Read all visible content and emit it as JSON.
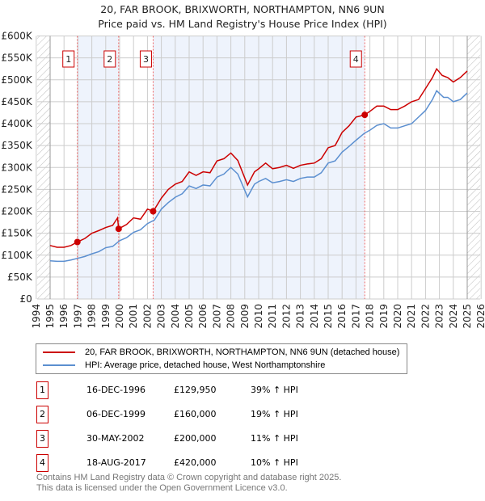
{
  "title_line1": "20, FAR BROOK, BRIXWORTH, NORTHAMPTON, NN6 9UN",
  "title_line2": "Price paid vs. HM Land Registry's House Price Index (HPI)",
  "colors": {
    "property": "#cc0000",
    "hpi": "#5b8fd0",
    "shade": "#eef3fc",
    "marker": "#cc0000"
  },
  "chart_data": {
    "type": "line",
    "xlim": [
      1994,
      2026
    ],
    "ylim": [
      0,
      600000
    ],
    "yticks": [
      0,
      50000,
      100000,
      150000,
      200000,
      250000,
      300000,
      350000,
      400000,
      450000,
      500000,
      550000,
      600000
    ],
    "ytick_labels": [
      "£0",
      "£50K",
      "£100K",
      "£150K",
      "£200K",
      "£250K",
      "£300K",
      "£350K",
      "£400K",
      "£450K",
      "£500K",
      "£550K",
      "£600K"
    ],
    "xticks": [
      "1994",
      "1995",
      "1996",
      "1997",
      "1998",
      "1999",
      "2000",
      "2001",
      "2002",
      "2003",
      "2004",
      "2005",
      "2006",
      "2007",
      "2008",
      "2009",
      "2010",
      "2011",
      "2012",
      "2013",
      "2014",
      "2015",
      "2016",
      "2017",
      "2018",
      "2019",
      "2020",
      "2021",
      "2022",
      "2023",
      "2024",
      "2025",
      "2026"
    ],
    "series": [
      {
        "name": "20, FAR BROOK, BRIXWORTH, NORTHAMPTON, NN6 9UN (detached house)",
        "x": [
          1995,
          1995.5,
          1996,
          1996.5,
          1996.96,
          1997.5,
          1998,
          1998.5,
          1999,
          1999.5,
          1999.85,
          1999.93,
          2000.5,
          2001,
          2001.5,
          2002,
          2002.42,
          2003,
          2003.5,
          2004,
          2004.5,
          2005,
          2005.5,
          2006,
          2006.5,
          2007,
          2007.5,
          2008,
          2008.5,
          2009.2,
          2009.7,
          2010,
          2010.5,
          2011,
          2011.5,
          2012,
          2012.5,
          2013,
          2013.5,
          2014,
          2014.5,
          2015,
          2015.5,
          2016,
          2016.5,
          2017,
          2017.63,
          2018,
          2018.5,
          2019,
          2019.5,
          2020,
          2020.5,
          2021,
          2021.5,
          2022,
          2022.5,
          2022.8,
          2023.2,
          2023.6,
          2024,
          2024.5,
          2025
        ],
        "values": [
          122000,
          118000,
          118000,
          122000,
          130000,
          138000,
          150000,
          156000,
          163000,
          168000,
          185000,
          160000,
          170000,
          185000,
          182000,
          205000,
          200000,
          230000,
          250000,
          262000,
          268000,
          290000,
          282000,
          290000,
          288000,
          315000,
          320000,
          333000,
          316000,
          260000,
          290000,
          297000,
          310000,
          297000,
          300000,
          305000,
          298000,
          305000,
          308000,
          310000,
          320000,
          345000,
          350000,
          380000,
          395000,
          415000,
          420000,
          428000,
          440000,
          440000,
          432000,
          432000,
          440000,
          450000,
          455000,
          480000,
          505000,
          525000,
          510000,
          505000,
          495000,
          505000,
          520000
        ]
      },
      {
        "name": "HPI: Average price, detached house, West Northamptonshire",
        "x": [
          1995,
          1995.5,
          1996,
          1996.5,
          1997,
          1997.5,
          1998,
          1998.5,
          1999,
          1999.5,
          2000,
          2000.5,
          2001,
          2001.5,
          2002,
          2002.5,
          2003,
          2003.5,
          2004,
          2004.5,
          2005,
          2005.5,
          2006,
          2006.5,
          2007,
          2007.5,
          2008,
          2008.5,
          2009.2,
          2009.7,
          2010,
          2010.5,
          2011,
          2011.5,
          2012,
          2012.5,
          2013,
          2013.5,
          2014,
          2014.5,
          2015,
          2015.5,
          2016,
          2016.5,
          2017,
          2017.6,
          2018,
          2018.5,
          2019,
          2019.5,
          2020,
          2020.5,
          2021,
          2021.5,
          2022,
          2022.5,
          2022.8,
          2023.3,
          2023.6,
          2024,
          2024.5,
          2025
        ],
        "values": [
          87000,
          86000,
          86000,
          89000,
          93000,
          97000,
          103000,
          108000,
          117000,
          120000,
          133000,
          140000,
          152000,
          158000,
          172000,
          180000,
          205000,
          220000,
          232000,
          240000,
          258000,
          252000,
          260000,
          258000,
          278000,
          285000,
          300000,
          285000,
          233000,
          262000,
          268000,
          275000,
          265000,
          268000,
          272000,
          268000,
          275000,
          278000,
          278000,
          288000,
          310000,
          315000,
          335000,
          348000,
          362000,
          378000,
          385000,
          396000,
          400000,
          390000,
          390000,
          395000,
          400000,
          415000,
          430000,
          455000,
          475000,
          460000,
          460000,
          450000,
          455000,
          470000
        ]
      }
    ],
    "sales": [
      {
        "label": "1",
        "x": 1996.96,
        "value": 129950,
        "date": "16-DEC-1996",
        "price": "£129,950",
        "hpi": "39% ↑ HPI"
      },
      {
        "label": "2",
        "x": 1999.93,
        "value": 160000,
        "date": "06-DEC-1999",
        "price": "£160,000",
        "hpi": "19% ↑ HPI"
      },
      {
        "label": "3",
        "x": 2002.41,
        "value": 200000,
        "date": "30-MAY-2002",
        "price": "£200,000",
        "hpi": "11% ↑ HPI"
      },
      {
        "label": "4",
        "x": 2017.63,
        "value": 420000,
        "date": "18-AUG-2017",
        "price": "£420,000",
        "hpi": "10% ↑ HPI"
      }
    ],
    "legend_position": "below"
  },
  "footer_line1": "Contains HM Land Registry data © Crown copyright and database right 2025.",
  "footer_line2": "This data is licensed under the Open Government Licence v3.0."
}
